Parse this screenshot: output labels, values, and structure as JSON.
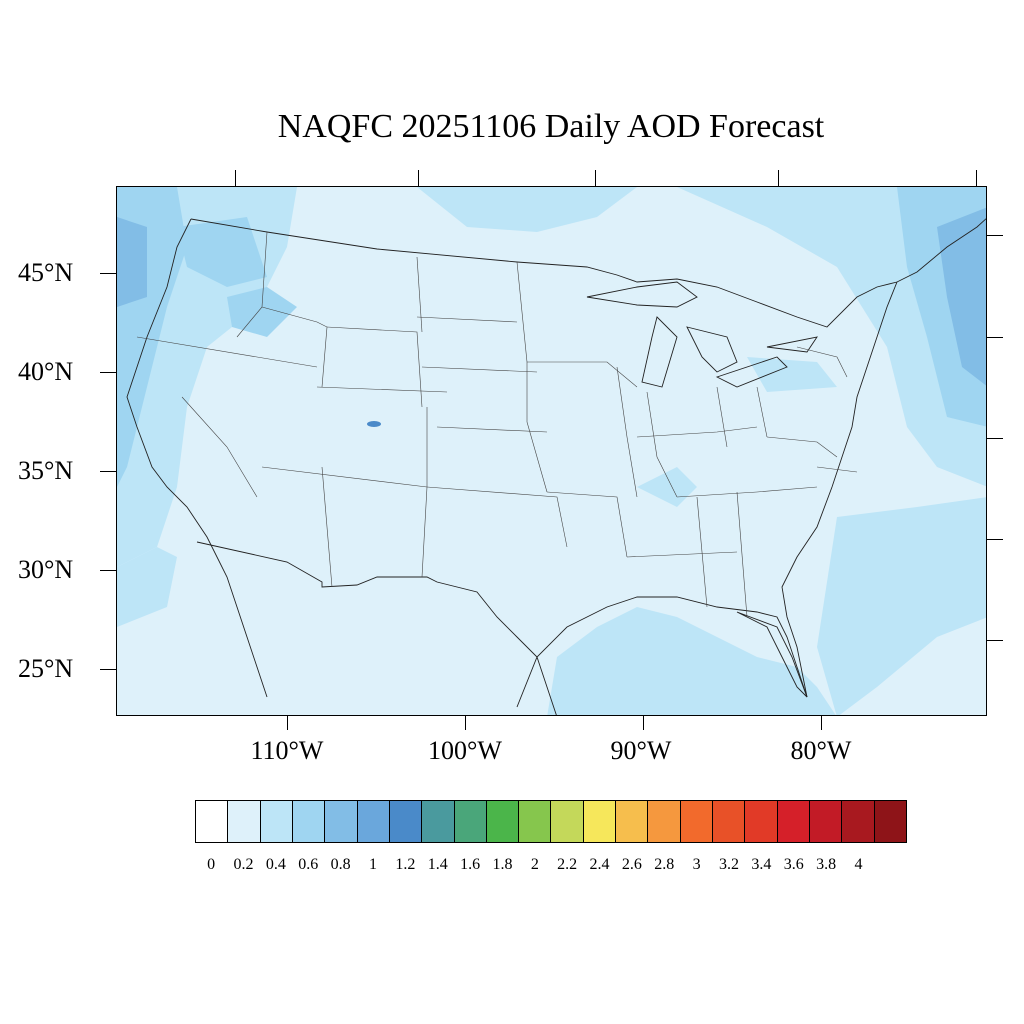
{
  "title": "NAQFC 20251106 Daily AOD Forecast",
  "lat_labels": [
    "45°N",
    "40°N",
    "35°N",
    "30°N",
    "25°N"
  ],
  "lon_labels": [
    "110°W",
    "100°W",
    "90°W",
    "80°W"
  ],
  "colorbar": {
    "labels": [
      "0",
      "0.2",
      "0.4",
      "0.6",
      "0.8",
      "1",
      "1.2",
      "1.4",
      "1.6",
      "1.8",
      "2",
      "2.2",
      "2.4",
      "2.6",
      "2.8",
      "3",
      "3.2",
      "3.4",
      "3.6",
      "3.8",
      "4"
    ],
    "colors": [
      "#ffffff",
      "#def1fa",
      "#bde5f7",
      "#9fd5f1",
      "#82bde6",
      "#6aa7dc",
      "#4a8ac9",
      "#4a9a9e",
      "#4aa67a",
      "#4bb54a",
      "#86c64d",
      "#c4d85a",
      "#f6e75b",
      "#f6be4d",
      "#f5983e",
      "#f26a2c",
      "#e85128",
      "#e13a27",
      "#d52029",
      "#c21b26",
      "#a8191f",
      "#8e1418"
    ]
  },
  "map": {
    "background_color": "#def1fa",
    "moderate_color": "#bde5f7",
    "higher_color": "#9fd5f1",
    "peak_color": "#82bde6"
  }
}
